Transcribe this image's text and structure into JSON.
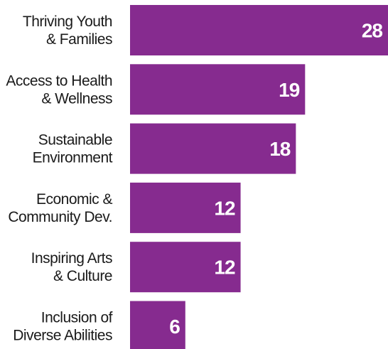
{
  "chart_data": {
    "type": "bar",
    "orientation": "horizontal",
    "title": "",
    "xlabel": "",
    "ylabel": "",
    "categories": [
      [
        "Thriving Youth",
        "& Families"
      ],
      [
        "Access to Health",
        "& Wellness"
      ],
      [
        "Sustainable",
        "Environment"
      ],
      [
        "Economic &",
        "Community Dev."
      ],
      [
        "Inspiring Arts",
        "& Culture"
      ],
      [
        "Inclusion of",
        "Diverse Abilities"
      ]
    ],
    "values": [
      28,
      19,
      18,
      12,
      12,
      6
    ],
    "xlim": [
      0,
      28
    ],
    "grid": false,
    "legend": "none",
    "bar_color": "#862b8f",
    "label_color": "#ffffff",
    "text_color": "#1a1a1a"
  }
}
